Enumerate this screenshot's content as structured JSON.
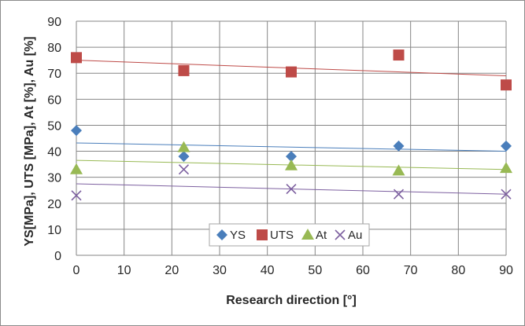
{
  "chart_data": {
    "type": "scatter",
    "title": "",
    "xlabel": "Research direction [°]",
    "ylabel": "YS[MPa], UTS [MPa], At [%], Au [%]",
    "xlim": [
      0,
      90
    ],
    "ylim": [
      0,
      90
    ],
    "xticks": [
      0,
      10,
      20,
      30,
      40,
      50,
      60,
      70,
      80,
      90
    ],
    "yticks": [
      0,
      10,
      20,
      30,
      40,
      50,
      60,
      70,
      80,
      90
    ],
    "x_tick_labels": [
      "0",
      "10",
      "20",
      "30",
      "40",
      "50",
      "60",
      "70",
      "80",
      "90"
    ],
    "y_tick_labels": [
      "0",
      "10",
      "20",
      "30",
      "40",
      "50",
      "60",
      "70",
      "80",
      "90"
    ],
    "grid": true,
    "legend_position": "bottom-center",
    "x": [
      0,
      22.5,
      45,
      67.5,
      90
    ],
    "series": [
      {
        "name": "YS",
        "marker": "diamond",
        "color": "#4a7ebb",
        "values": [
          48,
          38,
          38,
          42,
          42
        ],
        "trend": [
          43.2,
          40.0
        ]
      },
      {
        "name": "UTS",
        "marker": "square",
        "color": "#be4b48",
        "values": [
          76,
          71,
          70.5,
          77,
          65.5
        ],
        "trend": [
          75.0,
          69.0
        ]
      },
      {
        "name": "At",
        "marker": "triangle",
        "color": "#98b954",
        "values": [
          33,
          41.5,
          34.5,
          32.5,
          33.5
        ],
        "trend": [
          36.5,
          33.0
        ]
      },
      {
        "name": "Au",
        "marker": "x",
        "color": "#7d60a0",
        "values": [
          23,
          33,
          25.5,
          23.5,
          23.5
        ],
        "trend": [
          27.5,
          23.5
        ]
      }
    ]
  }
}
